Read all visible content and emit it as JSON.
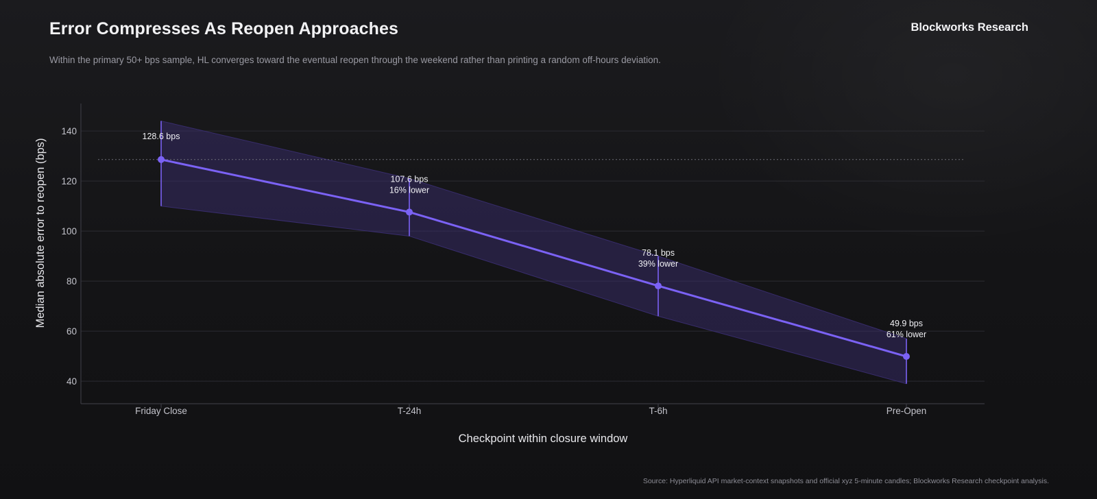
{
  "header": {
    "title": "Error Compresses As Reopen Approaches",
    "subtitle": "Within the primary 50+ bps sample, HL converges toward the eventual reopen through the weekend rather than printing a random off-hours deviation.",
    "brand": "Blockworks Research"
  },
  "footer": {
    "source": "Source: Hyperliquid API market-context snapshots and official xyz 5-minute candles; Blockworks Research checkpoint analysis."
  },
  "colors": {
    "accent": "#7b62f5",
    "band": "#3b2f73",
    "grid": "#2c2c33",
    "axis": "#3a3a42"
  },
  "chart_data": {
    "type": "line",
    "title": "Error Compresses As Reopen Approaches",
    "xlabel": "Checkpoint within closure window",
    "ylabel": "Median absolute error to reopen (bps)",
    "ylim": [
      31,
      151
    ],
    "yticks": [
      40,
      60,
      80,
      100,
      120,
      140
    ],
    "grid": true,
    "categories": [
      "Friday Close",
      "T-24h",
      "T-6h",
      "Pre-Open"
    ],
    "series": [
      {
        "name": "Median absolute error",
        "values": [
          128.6,
          107.6,
          78.1,
          49.9
        ],
        "band_high": [
          144,
          121,
          90,
          57
        ],
        "band_low": [
          110,
          98,
          66,
          39
        ]
      }
    ],
    "reference_line": {
      "value": 128.6,
      "style": "dotted"
    },
    "point_labels": [
      [
        "128.6 bps"
      ],
      [
        "107.6 bps",
        "16% lower"
      ],
      [
        "78.1 bps",
        "39% lower"
      ],
      [
        "49.9 bps",
        "61% lower"
      ]
    ]
  }
}
